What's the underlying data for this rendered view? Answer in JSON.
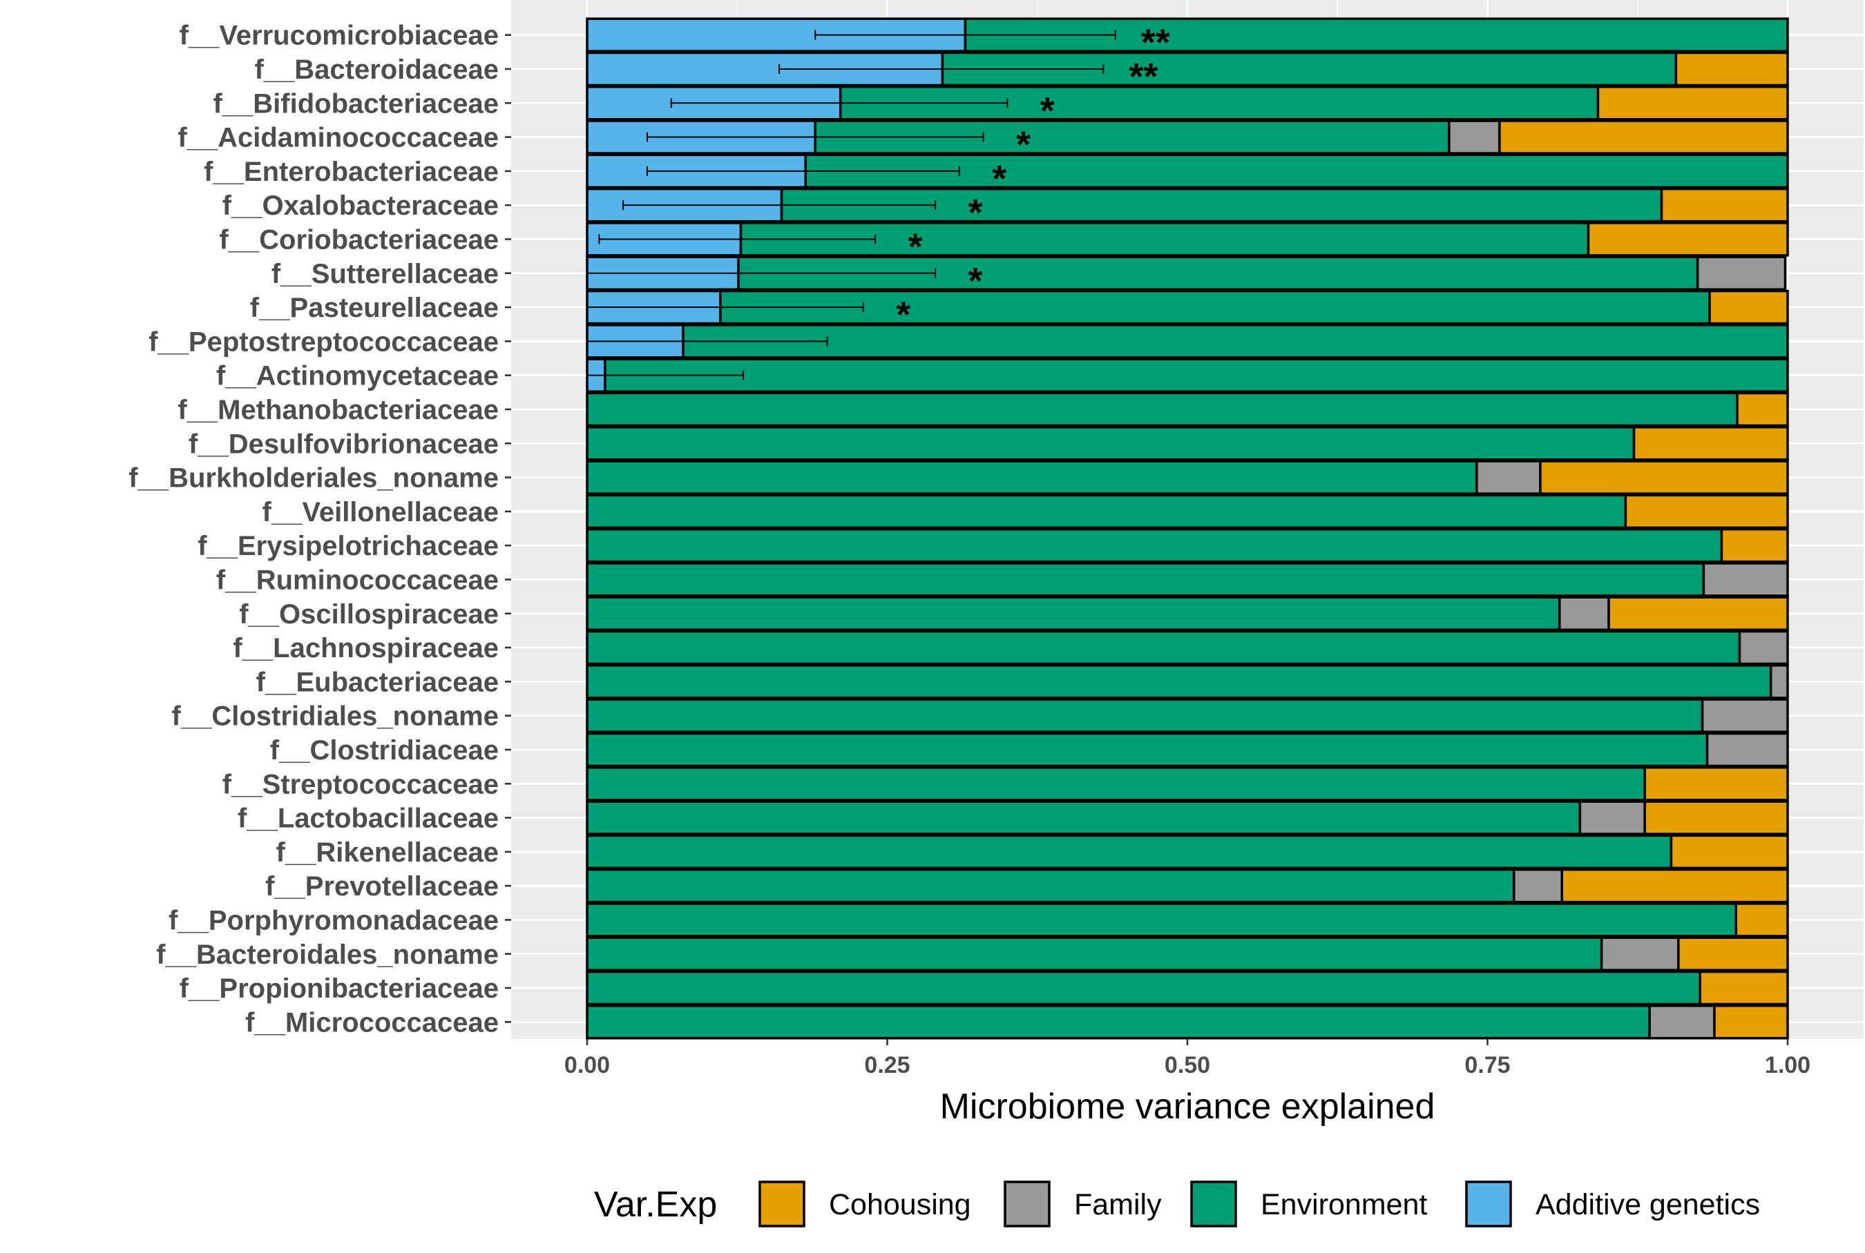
{
  "chart_data": {
    "type": "bar",
    "orientation": "horizontal",
    "stacked": true,
    "xlabel": "Microbiome variance explained",
    "xlim": [
      0,
      1
    ],
    "xticks": [
      "0.00",
      "0.25",
      "0.50",
      "0.75",
      "1.00"
    ],
    "grid": true,
    "legend": {
      "title": "Var.Exp",
      "position": "bottom",
      "entries": [
        {
          "name": "Cohousing",
          "color": "#E69F00"
        },
        {
          "name": "Family",
          "color": "#999999"
        },
        {
          "name": "Environment",
          "color": "#009E73"
        },
        {
          "name": "Additive genetics",
          "color": "#56B4E9"
        }
      ]
    },
    "categories": [
      "f__Verrucomicrobiaceae",
      "f__Bacteroidaceae",
      "f__Bifidobacteriaceae",
      "f__Acidaminococcaceae",
      "f__Enterobacteriaceae",
      "f__Oxalobacteraceae",
      "f__Coriobacteriaceae",
      "f__Sutterellaceae",
      "f__Pasteurellaceae",
      "f__Peptostreptococcaceae",
      "f__Actinomycetaceae",
      "f__Methanobacteriaceae",
      "f__Desulfovibrionaceae",
      "f__Burkholderiales_noname",
      "f__Veillonellaceae",
      "f__Erysipelotrichaceae",
      "f__Ruminococcaceae",
      "f__Oscillospiraceae",
      "f__Lachnospiraceae",
      "f__Eubacteriaceae",
      "f__Clostridiales_noname",
      "f__Clostridiaceae",
      "f__Streptococcaceae",
      "f__Lactobacillaceae",
      "f__Rikenellaceae",
      "f__Prevotellaceae",
      "f__Porphyromonadaceae",
      "f__Bacteroidales_noname",
      "f__Propionibacteriaceae",
      "f__Micrococcaceae"
    ],
    "series": [
      {
        "name": "Additive genetics",
        "values": [
          0.315,
          0.296,
          0.211,
          0.19,
          0.182,
          0.162,
          0.128,
          0.126,
          0.111,
          0.08,
          0.015,
          0,
          0,
          0,
          0,
          0,
          0,
          0,
          0,
          0,
          0,
          0,
          0,
          0,
          0,
          0,
          0,
          0,
          0,
          0
        ]
      },
      {
        "name": "Environment",
        "values": [
          0.685,
          0.611,
          0.631,
          0.528,
          0.818,
          0.733,
          0.706,
          0.799,
          0.824,
          0.92,
          0.985,
          0.958,
          0.872,
          0.741,
          0.865,
          0.945,
          0.93,
          0.81,
          0.96,
          0.986,
          0.929,
          0.933,
          0.881,
          0.827,
          0.903,
          0.772,
          0.957,
          0.845,
          0.927,
          0.885
        ]
      },
      {
        "name": "Family",
        "values": [
          0,
          0,
          0,
          0.042,
          0,
          0,
          0,
          0.073,
          0,
          0,
          0,
          0,
          0,
          0.053,
          0,
          0,
          0.07,
          0.041,
          0.04,
          0.014,
          0.071,
          0.067,
          0,
          0.054,
          0,
          0.04,
          0,
          0.064,
          0,
          0.054
        ]
      },
      {
        "name": "Cohousing",
        "values": [
          0,
          0.093,
          0.158,
          0.24,
          0,
          0.105,
          0.166,
          0,
          0.065,
          0,
          0,
          0.042,
          0.128,
          0.206,
          0.135,
          0.055,
          0,
          0.149,
          0,
          0,
          0,
          0,
          0.119,
          0.119,
          0.097,
          0.188,
          0.043,
          0.091,
          0.073,
          0.061
        ]
      }
    ],
    "error_bars": {
      "series": "Additive genetics",
      "lower": [
        0.19,
        0.16,
        0.07,
        0.05,
        0.05,
        0.03,
        0.01,
        null,
        null,
        null,
        null
      ],
      "upper": [
        0.44,
        0.43,
        0.35,
        0.33,
        0.31,
        0.29,
        0.24,
        0.29,
        0.23,
        0.2,
        0.13
      ]
    },
    "significance": [
      "**",
      "**",
      "*",
      "*",
      "*",
      "*",
      "*",
      "*",
      "*",
      "",
      "",
      "",
      "",
      "",
      "",
      "",
      "",
      "",
      "",
      "",
      "",
      "",
      "",
      "",
      "",
      "",
      "",
      "",
      "",
      ""
    ]
  }
}
